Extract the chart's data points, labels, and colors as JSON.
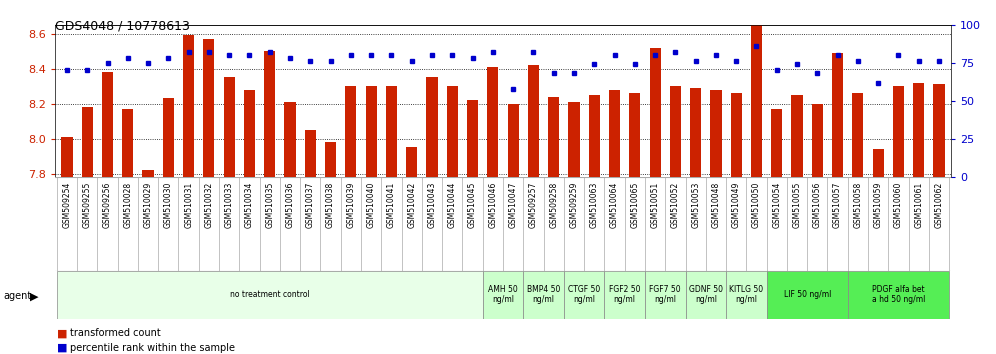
{
  "title": "GDS4048 / 10778613",
  "samples": [
    "GSM509254",
    "GSM509255",
    "GSM509256",
    "GSM510028",
    "GSM510029",
    "GSM510030",
    "GSM510031",
    "GSM510032",
    "GSM510033",
    "GSM510034",
    "GSM510035",
    "GSM510036",
    "GSM510037",
    "GSM510038",
    "GSM510039",
    "GSM510040",
    "GSM510041",
    "GSM510042",
    "GSM510043",
    "GSM510044",
    "GSM510045",
    "GSM510046",
    "GSM510047",
    "GSM509257",
    "GSM509258",
    "GSM509259",
    "GSM510063",
    "GSM510064",
    "GSM510065",
    "GSM510051",
    "GSM510052",
    "GSM510053",
    "GSM510048",
    "GSM510049",
    "GSM510050",
    "GSM510054",
    "GSM510055",
    "GSM510056",
    "GSM510057",
    "GSM510058",
    "GSM510059",
    "GSM510060",
    "GSM510061",
    "GSM510062"
  ],
  "bar_values": [
    8.01,
    8.18,
    8.38,
    8.17,
    7.82,
    8.23,
    8.59,
    8.57,
    8.35,
    8.28,
    8.5,
    8.21,
    8.05,
    7.98,
    8.3,
    8.3,
    8.3,
    7.95,
    8.35,
    8.3,
    8.22,
    8.41,
    8.2,
    8.42,
    8.24,
    8.21,
    8.25,
    8.28,
    8.26,
    8.52,
    8.3,
    8.29,
    8.28,
    8.26,
    8.68,
    8.17,
    8.25,
    8.2,
    8.49,
    8.26,
    7.94,
    8.3,
    8.32,
    8.31
  ],
  "dot_values": [
    70,
    70,
    75,
    78,
    75,
    78,
    82,
    82,
    80,
    80,
    82,
    78,
    76,
    76,
    80,
    80,
    80,
    76,
    80,
    80,
    78,
    82,
    58,
    82,
    68,
    68,
    74,
    80,
    74,
    80,
    82,
    76,
    80,
    76,
    86,
    70,
    74,
    68,
    80,
    76,
    62,
    80,
    76,
    76
  ],
  "bar_color": "#cc2200",
  "dot_color": "#0000cc",
  "ylim_left": [
    7.78,
    8.65
  ],
  "ylim_right": [
    0,
    100
  ],
  "yticks_left": [
    7.8,
    8.0,
    8.2,
    8.4,
    8.6
  ],
  "yticks_right": [
    0,
    25,
    50,
    75,
    100
  ],
  "agent_groups": [
    {
      "label": "no treatment control",
      "start": 0,
      "end": 21,
      "color": "#e8ffe8"
    },
    {
      "label": "AMH 50\nng/ml",
      "start": 21,
      "end": 23,
      "color": "#ccffcc"
    },
    {
      "label": "BMP4 50\nng/ml",
      "start": 23,
      "end": 25,
      "color": "#ccffcc"
    },
    {
      "label": "CTGF 50\nng/ml",
      "start": 25,
      "end": 27,
      "color": "#ccffcc"
    },
    {
      "label": "FGF2 50\nng/ml",
      "start": 27,
      "end": 29,
      "color": "#ccffcc"
    },
    {
      "label": "FGF7 50\nng/ml",
      "start": 29,
      "end": 31,
      "color": "#ccffcc"
    },
    {
      "label": "GDNF 50\nng/ml",
      "start": 31,
      "end": 33,
      "color": "#ccffcc"
    },
    {
      "label": "KITLG 50\nng/ml",
      "start": 33,
      "end": 35,
      "color": "#ccffcc"
    },
    {
      "label": "LIF 50 ng/ml",
      "start": 35,
      "end": 39,
      "color": "#55ee55"
    },
    {
      "label": "PDGF alfa bet\na hd 50 ng/ml",
      "start": 39,
      "end": 44,
      "color": "#55ee55"
    }
  ],
  "ylabel_left_color": "#cc2200",
  "ylabel_right_color": "#0000cc",
  "background_color": "#ffffff",
  "label_row_color": "#d8d8d8",
  "label_border_color": "#aaaaaa"
}
